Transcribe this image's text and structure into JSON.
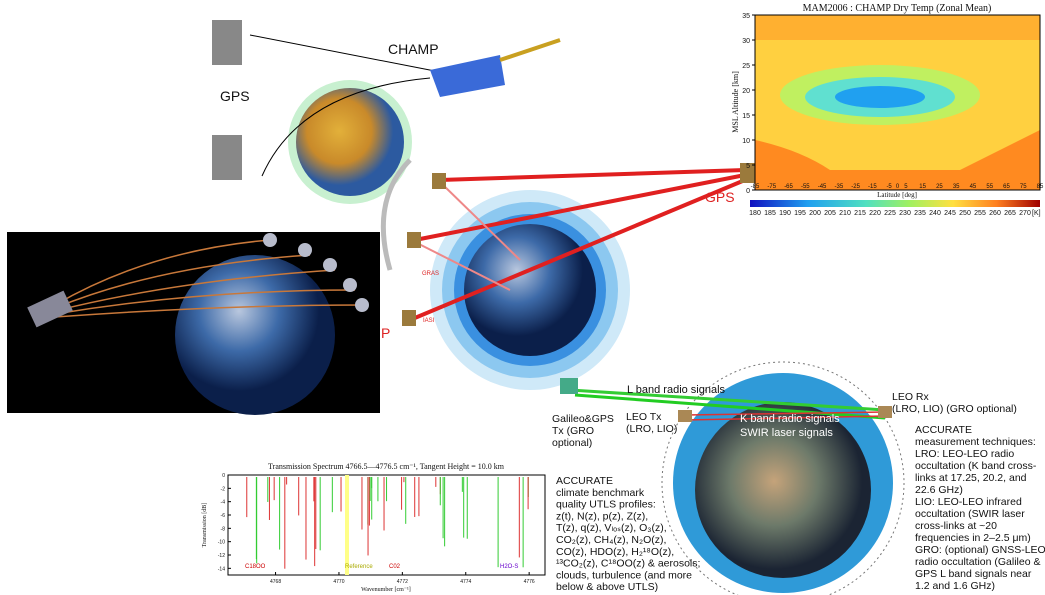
{
  "labels": {
    "champ": "CHAMP",
    "gps_left": "GPS",
    "gps_right": "GPS",
    "gras": "GRAS",
    "iasi": "IASI",
    "partial_p": "P"
  },
  "contour_chart": {
    "title": "MAM2006 : CHAMP Dry Temp  (Zonal Mean)",
    "y_label": "MSL Altitude [km]",
    "x_label": "Latitude [deg]",
    "ylim": [
      0,
      35
    ],
    "yticks": [
      0,
      5,
      10,
      15,
      20,
      25,
      30,
      35
    ],
    "xlim": [
      -85,
      85
    ],
    "xticks": [
      -85,
      -75,
      -65,
      -55,
      -45,
      -35,
      -25,
      -15,
      -5,
      0,
      5,
      15,
      25,
      35,
      45,
      55,
      65,
      75,
      85
    ],
    "colorbar_ticks": [
      180,
      185,
      190,
      195,
      200,
      205,
      210,
      215,
      220,
      225,
      230,
      235,
      240,
      245,
      250,
      255,
      260,
      265,
      270
    ],
    "colorbar_unit": "[K]"
  },
  "spectrum_chart": {
    "title": "Transmission Spectrum 4766.5—4776.5 cm⁻¹, Tangent Height = 10.0 km",
    "y_label": "Transmission [dB]",
    "x_label": "Wavenumber [cm⁻¹]",
    "ylim": [
      -15,
      0
    ],
    "yticks": [
      0,
      -2,
      -4,
      -6,
      -8,
      -10,
      -12,
      -14
    ],
    "xlim": [
      4766.5,
      4776.5
    ],
    "xticks": [
      4768,
      4770,
      4772,
      4774,
      4776
    ],
    "annotations": [
      "C18OO",
      "Reference",
      "C02",
      "H2O-S"
    ]
  },
  "signals": {
    "l_band": "L band radio signals",
    "k_band": "K band radio signals",
    "swir": "SWIR laser signals"
  },
  "nodes": {
    "leo_rx": [
      "LEO Rx",
      "(LRO, LIO) (GRO optional)"
    ],
    "leo_tx": [
      "LEO Tx",
      "(LRO, LIO)"
    ],
    "gnss_tx": [
      "Galileo&GPS",
      "Tx (GRO",
      "optional)"
    ]
  },
  "profiles_text": [
    "ACCURATE",
    "climate benchmark",
    "quality UTLS profiles:",
    "z(t), N(z), p(z), Z(z),",
    "T(z), q(z), Vₗₒₛ(z), O₃(z),",
    "CO₂(z), CH₄(z), N₂O(z),",
    "CO(z), HDO(z), H₂¹⁸O(z),",
    "¹³CO₂(z), C¹⁸OO(z) & aerosols;",
    "clouds, turbulence (and more",
    "below & above UTLS)"
  ],
  "techniques_text": [
    "ACCURATE",
    "measurement techniques:",
    "LRO: LEO-LEO radio",
    "occultation (K band cross-",
    "links at 17.25, 20.2, and",
    "22.6 GHz)",
    "LIO: LEO-LEO infrared",
    "occultation (SWIR laser",
    "cross-links at ~20",
    "frequencies in 2–2.5 μm)",
    "GRO: (optional) GNSS-LEO",
    "radio occultation (Galileo &",
    "GPS L band signals near",
    "1.2 and 1.6 GHz)"
  ]
}
